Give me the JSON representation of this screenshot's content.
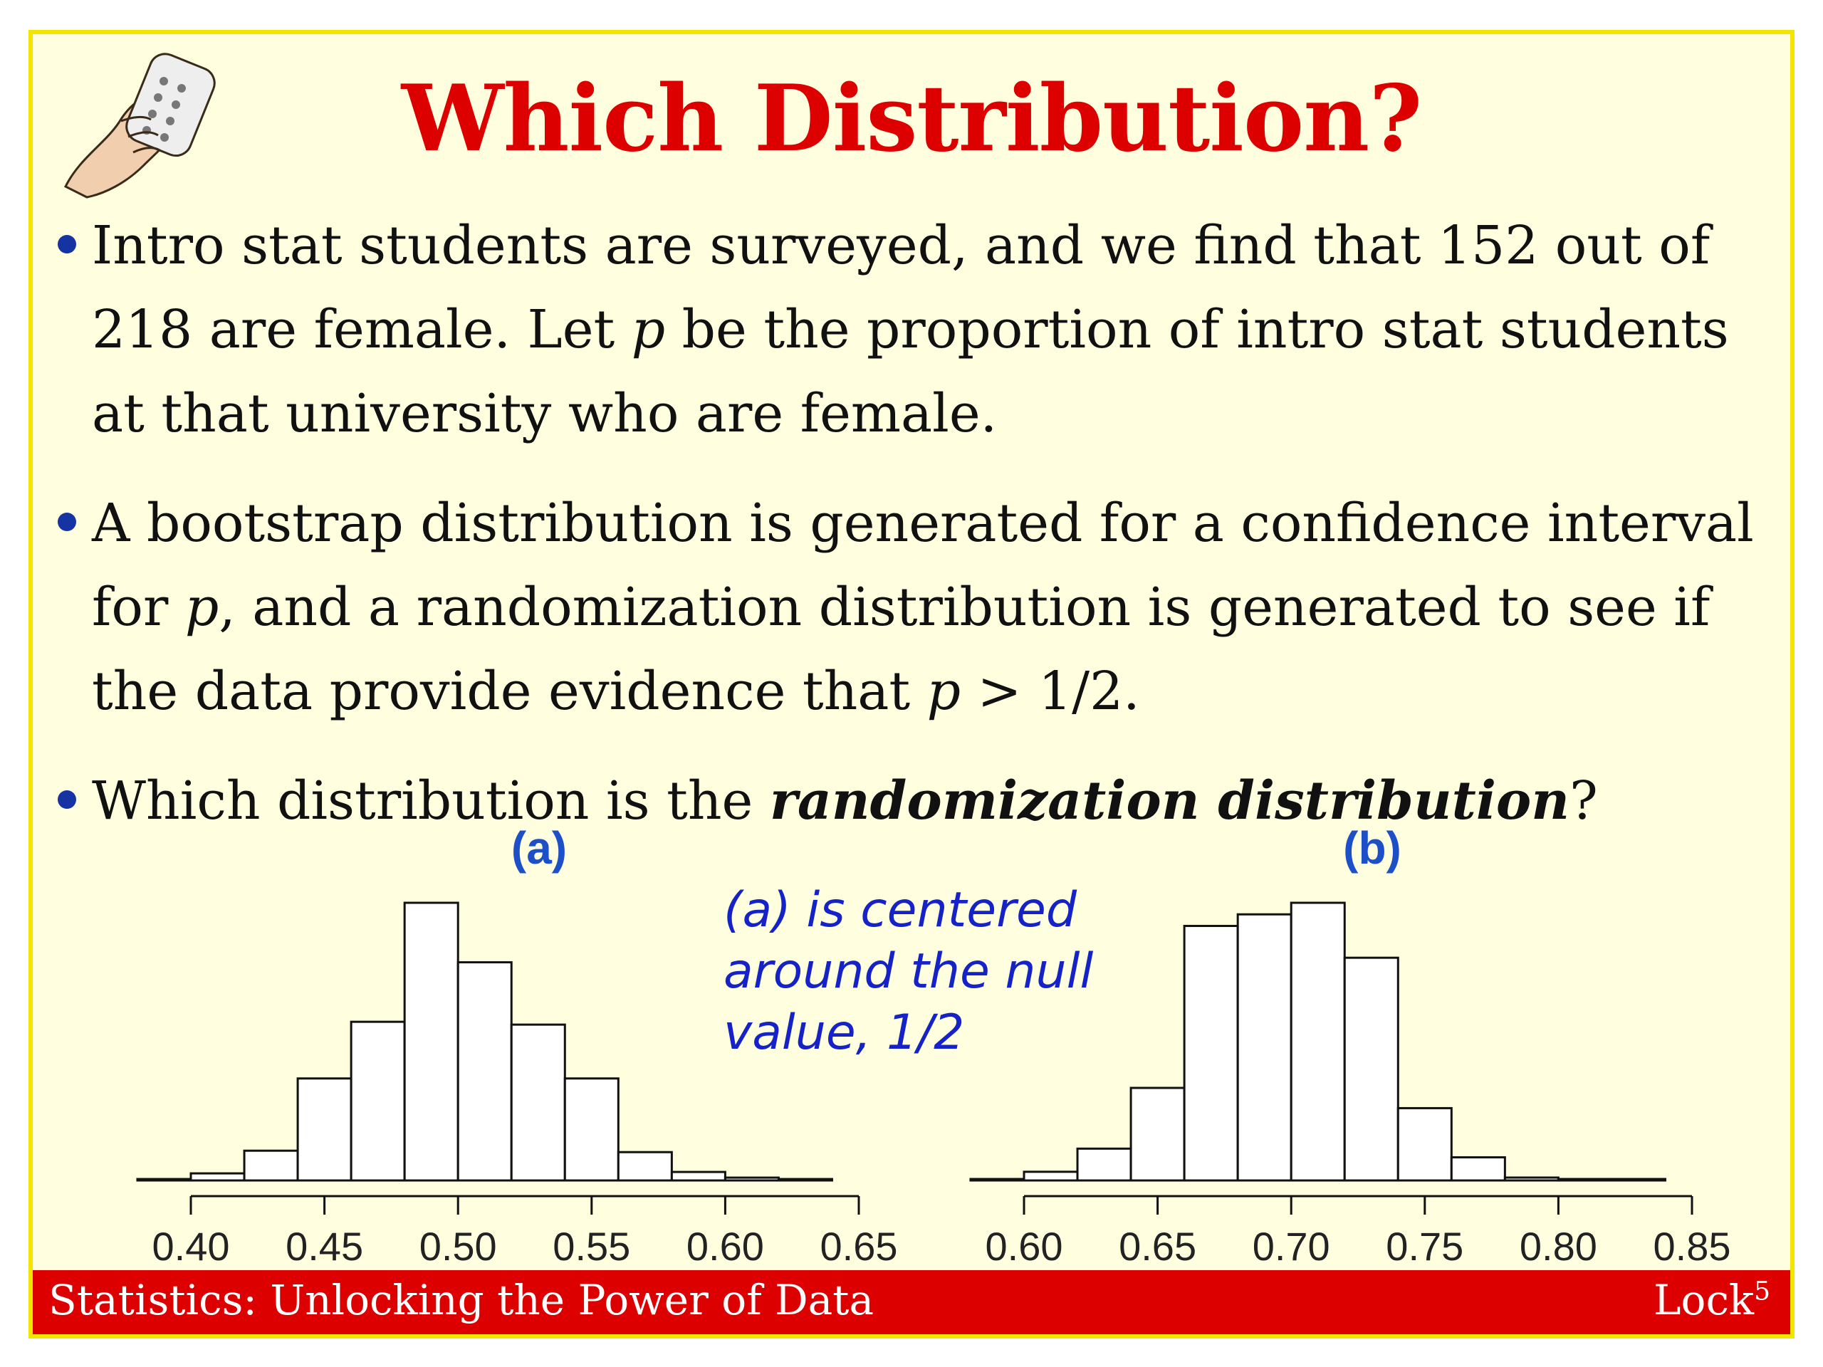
{
  "slide": {
    "title": "Which Distribution?",
    "bullets": [
      {
        "parts": [
          {
            "t": " Intro stat students are surveyed, and we find that 152 out of 218 are female.  Let ",
            "s": "n"
          },
          {
            "t": "p",
            "s": "i"
          },
          {
            "t": " be the proportion of intro stat students at that university who are female.",
            "s": "n"
          }
        ]
      },
      {
        "parts": [
          {
            "t": "A bootstrap distribution is generated for a confidence interval for ",
            "s": "n"
          },
          {
            "t": "p",
            "s": "i"
          },
          {
            "t": ", and a randomization distribution is generated to see if the data provide evidence that ",
            "s": "n"
          },
          {
            "t": "p",
            "s": "i"
          },
          {
            "t": " > 1/2.",
            "s": "n"
          }
        ]
      },
      {
        "parts": [
          {
            "t": "Which distribution is the ",
            "s": "n"
          },
          {
            "t": "randomization distribution",
            "s": "bi"
          },
          {
            "t": "?",
            "s": "n"
          }
        ]
      }
    ],
    "annotation": [
      "(a) is centered",
      "around the null",
      "value, 1/2"
    ],
    "footer": {
      "left": "Statistics: Unlocking the Power of Data",
      "right": "Lock",
      "right_sup": "5"
    },
    "icon": "hand-holding-clicker-icon",
    "colors": {
      "title": "#dd0000",
      "bullet": "#1633a3",
      "annotation": "#1522c8",
      "panel_label": "#1d4fc8",
      "footer": "#dd0000",
      "border": "#f2e600",
      "background": "#ffffe0"
    }
  },
  "chart_data": [
    {
      "type": "bar",
      "label": "(a)",
      "bin_edges": [
        0.38,
        0.4,
        0.42,
        0.44,
        0.46,
        0.48,
        0.5,
        0.52,
        0.54,
        0.56,
        0.58,
        0.6,
        0.62,
        0.64
      ],
      "values": [
        0.5,
        2.5,
        10.5,
        36,
        56,
        98,
        77,
        55,
        36,
        10,
        3,
        1,
        0.5
      ],
      "ticks": [
        "0.40",
        "0.45",
        "0.50",
        "0.55",
        "0.60",
        "0.65"
      ],
      "xlim": [
        0.4,
        0.65
      ]
    },
    {
      "type": "bar",
      "label": "(b)",
      "bin_edges": [
        0.58,
        0.6,
        0.62,
        0.64,
        0.66,
        0.68,
        0.7,
        0.72,
        0.74,
        0.76,
        0.78,
        0.8,
        0.82,
        0.84
      ],
      "values": [
        0.5,
        3,
        11,
        32,
        88,
        92,
        96,
        77,
        25,
        8,
        1,
        0.5,
        0.5
      ],
      "ticks": [
        "0.60",
        "0.65",
        "0.70",
        "0.75",
        "0.80",
        "0.85"
      ],
      "xlim": [
        0.6,
        0.85
      ]
    }
  ]
}
